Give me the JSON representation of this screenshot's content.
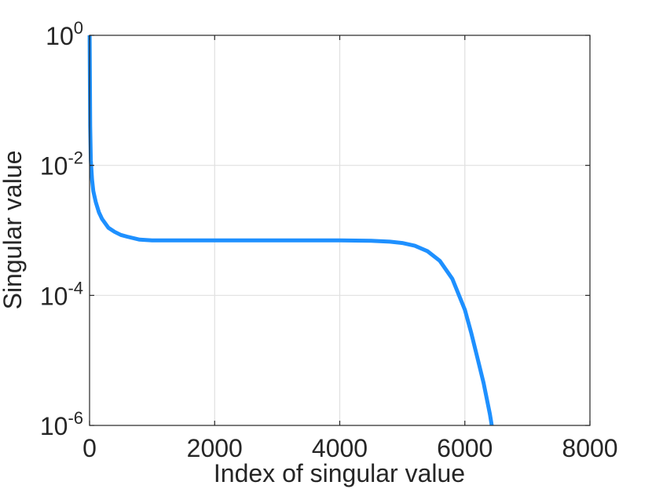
{
  "chart_data": {
    "type": "line",
    "title": "",
    "xlabel": "Index of singular value",
    "ylabel": "Singular value",
    "xlim": [
      0,
      8000
    ],
    "ylim": [
      1e-06,
      1
    ],
    "yscale": "log",
    "grid": true,
    "x_ticks": [
      0,
      2000,
      4000,
      6000,
      8000
    ],
    "x_tick_labels": [
      "0",
      "2000",
      "4000",
      "6000",
      "8000"
    ],
    "y_ticks": [
      {
        "value": 1e-06,
        "base": "10",
        "exp": "-6"
      },
      {
        "value": 0.0001,
        "base": "10",
        "exp": "-4"
      },
      {
        "value": 0.01,
        "base": "10",
        "exp": "-2"
      },
      {
        "value": 1,
        "base": "10",
        "exp": "0"
      }
    ],
    "line_color": "#1e90ff",
    "series": [
      {
        "x": [
          1,
          10,
          20,
          40,
          60,
          100,
          150,
          200,
          300,
          400,
          500,
          600,
          800,
          1000,
          1500,
          2000,
          3000,
          4000,
          4500,
          4800,
          5000,
          5200,
          5400,
          5600,
          5800,
          6000,
          6100,
          6200,
          6300,
          6400,
          6430
        ],
        "y": [
          1.0,
          0.04,
          0.012,
          0.006,
          0.004,
          0.0027,
          0.0019,
          0.0015,
          0.0011,
          0.00095,
          0.00085,
          0.0008,
          0.00072,
          0.0007,
          0.0007,
          0.0007,
          0.0007,
          0.0007,
          0.00069,
          0.00067,
          0.00064,
          0.00058,
          0.00048,
          0.00034,
          0.00018,
          6e-05,
          2.7e-05,
          1.1e-05,
          4.5e-06,
          1.5e-06,
          1e-06
        ]
      }
    ]
  }
}
